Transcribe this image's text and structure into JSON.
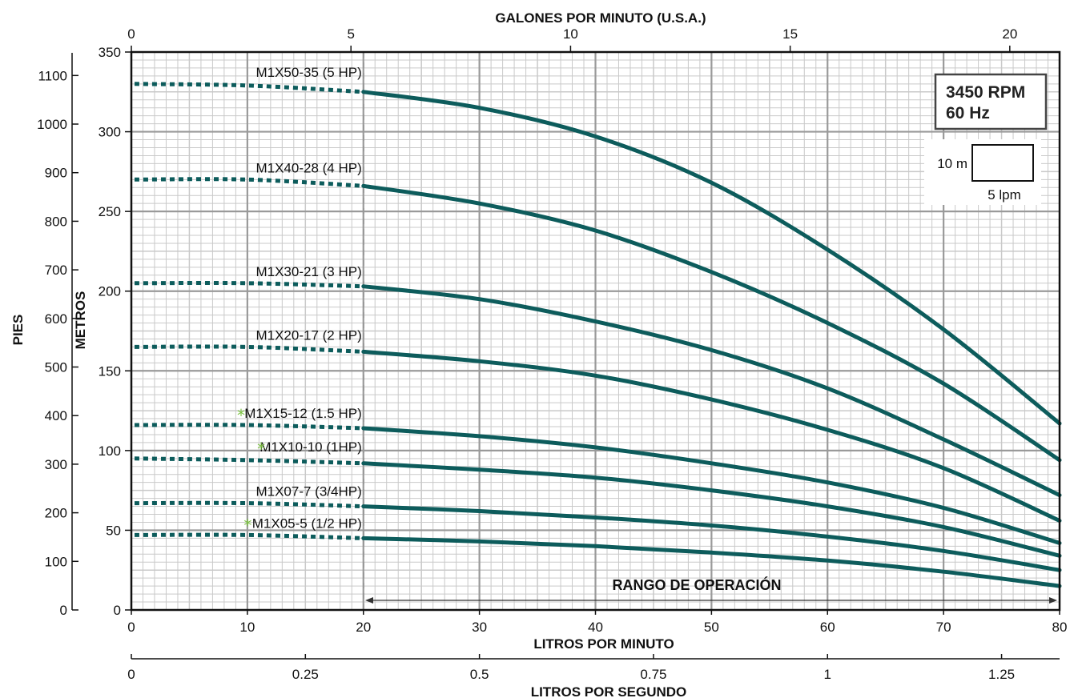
{
  "chart_data": {
    "type": "line",
    "title": "",
    "x_top": {
      "label": "GALONES POR MINUTO (U.S.A.)",
      "ticks": [
        0,
        5,
        10,
        15,
        20
      ]
    },
    "x_bottom": {
      "label": "LITROS POR MINUTO",
      "range": [
        0,
        80
      ],
      "ticks": [
        0,
        10,
        20,
        30,
        40,
        50,
        60,
        70,
        80
      ]
    },
    "x_bottom2": {
      "label": "LITROS POR SEGUNDO",
      "ticks": [
        "0",
        "0.25",
        "0.5",
        "0.75",
        "1",
        "1.25"
      ]
    },
    "y_left_outer": {
      "label": "PIES",
      "ticks": [
        0,
        100,
        200,
        300,
        400,
        500,
        600,
        700,
        800,
        900,
        1000,
        1100
      ]
    },
    "y_left_inner": {
      "label": "METROS",
      "range": [
        0,
        350
      ],
      "ticks": [
        0,
        50,
        100,
        150,
        200,
        250,
        300,
        350
      ]
    },
    "rpm_box": {
      "line1": "3450 RPM",
      "line2": "60 Hz"
    },
    "scale_box": {
      "height_label": "10 m",
      "width_label": "5 lpm"
    },
    "operating_range": {
      "label": "RANGO DE OPERACIÓN",
      "from": 20,
      "to": 80
    },
    "grid": true,
    "series": [
      {
        "name": "M1X50-35 (5 HP)",
        "starred": false,
        "x": [
          0,
          10,
          20,
          30,
          40,
          50,
          60,
          70,
          80
        ],
        "y": [
          330,
          329,
          325,
          315,
          297,
          268,
          226,
          176,
          117
        ]
      },
      {
        "name": "M1X40-28 (4 HP)",
        "starred": false,
        "x": [
          0,
          10,
          20,
          30,
          40,
          50,
          60,
          70,
          80
        ],
        "y": [
          270,
          270,
          266,
          255,
          238,
          212,
          180,
          142,
          94
        ]
      },
      {
        "name": "M1X30-21 (3 HP)",
        "starred": false,
        "x": [
          0,
          10,
          20,
          30,
          40,
          50,
          60,
          70,
          80
        ],
        "y": [
          205,
          205,
          203,
          195,
          181,
          163,
          139,
          107,
          72
        ]
      },
      {
        "name": "M1X20-17 (2 HP)",
        "starred": false,
        "x": [
          0,
          10,
          20,
          30,
          40,
          50,
          60,
          70,
          80
        ],
        "y": [
          165,
          165,
          162,
          156,
          147,
          132,
          113,
          89,
          56
        ]
      },
      {
        "name": "M1X15-12 (1.5 HP)",
        "starred": true,
        "x": [
          0,
          10,
          20,
          30,
          40,
          50,
          60,
          70,
          80
        ],
        "y": [
          116,
          116,
          114,
          109,
          102,
          92,
          80,
          64,
          42
        ]
      },
      {
        "name": "M1X10-10 (1HP)",
        "starred": true,
        "x": [
          0,
          10,
          20,
          30,
          40,
          50,
          60,
          70,
          80
        ],
        "y": [
          95,
          94,
          92,
          88,
          83,
          75,
          65,
          52,
          34
        ]
      },
      {
        "name": "M1X07-7 (3/4HP)",
        "starred": false,
        "x": [
          0,
          10,
          20,
          30,
          40,
          50,
          60,
          70,
          80
        ],
        "y": [
          67,
          67,
          65,
          62,
          58,
          53,
          46,
          37,
          25
        ]
      },
      {
        "name": "M1X05-5 (1/2 HP)",
        "starred": true,
        "x": [
          0,
          10,
          20,
          30,
          40,
          50,
          60,
          70,
          80
        ],
        "y": [
          47,
          47,
          45,
          43,
          40,
          36,
          31,
          24,
          15
        ]
      }
    ],
    "line_color": "#0d5c5c",
    "star_color": "#7cc242"
  }
}
